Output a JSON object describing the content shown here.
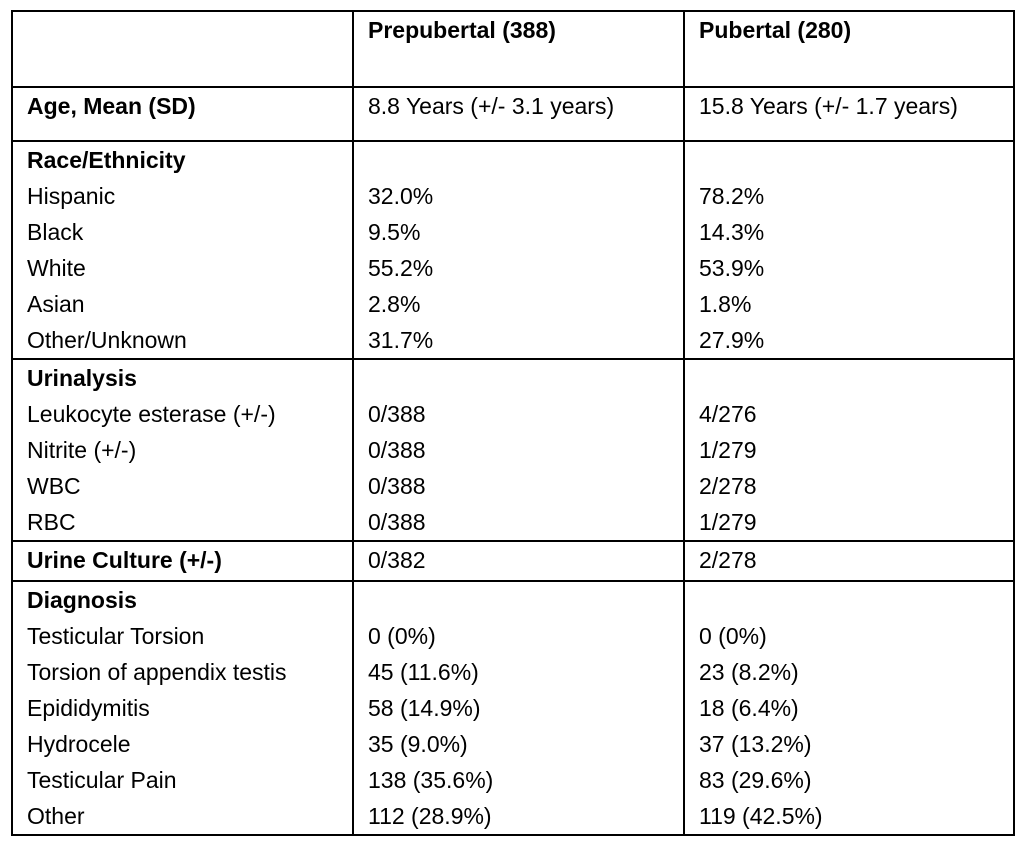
{
  "header": {
    "blank": "",
    "col_prepubertal": "Prepubertal (388)",
    "col_pubertal": "Pubertal (280)"
  },
  "age": {
    "label": "Age, Mean (SD)",
    "prepubertal": "8.8 Years (+/- 3.1 years)",
    "pubertal": "15.8 Years (+/- 1.7 years)"
  },
  "race": {
    "title": "Race/Ethnicity",
    "rows": [
      {
        "label": "Hispanic",
        "prepubertal": "32.0%",
        "pubertal": "78.2%"
      },
      {
        "label": "Black",
        "prepubertal": "9.5%",
        "pubertal": "14.3%"
      },
      {
        "label": "White",
        "prepubertal": "55.2%",
        "pubertal": "53.9%"
      },
      {
        "label": "Asian",
        "prepubertal": "2.8%",
        "pubertal": "1.8%"
      },
      {
        "label": "Other/Unknown",
        "prepubertal": "31.7%",
        "pubertal": "27.9%"
      }
    ]
  },
  "urinalysis": {
    "title": "Urinalysis",
    "rows": [
      {
        "label": "Leukocyte esterase (+/-)",
        "prepubertal": "0/388",
        "pubertal": "4/276"
      },
      {
        "label": "Nitrite (+/-)",
        "prepubertal": "0/388",
        "pubertal": "1/279"
      },
      {
        "label": "WBC",
        "prepubertal": "0/388",
        "pubertal": "2/278"
      },
      {
        "label": "RBC",
        "prepubertal": "0/388",
        "pubertal": "1/279"
      }
    ]
  },
  "culture": {
    "label": "Urine Culture (+/-)",
    "prepubertal": "0/382",
    "pubertal": "2/278"
  },
  "diagnosis": {
    "title": "Diagnosis",
    "rows": [
      {
        "label": "Testicular Torsion",
        "prepubertal": "0 (0%)",
        "pubertal": "0 (0%)"
      },
      {
        "label": "Torsion of appendix testis",
        "prepubertal": "45 (11.6%)",
        "pubertal": "23 (8.2%)"
      },
      {
        "label": "Epididymitis",
        "prepubertal": "58 (14.9%)",
        "pubertal": "18 (6.4%)"
      },
      {
        "label": "Hydrocele",
        "prepubertal": "35 (9.0%)",
        "pubertal": "37 (13.2%)"
      },
      {
        "label": "Testicular Pain",
        "prepubertal": "138 (35.6%)",
        "pubertal": "83 (29.6%)"
      },
      {
        "label": "Other",
        "prepubertal": "112 (28.9%)",
        "pubertal": "119 (42.5%)"
      }
    ]
  }
}
